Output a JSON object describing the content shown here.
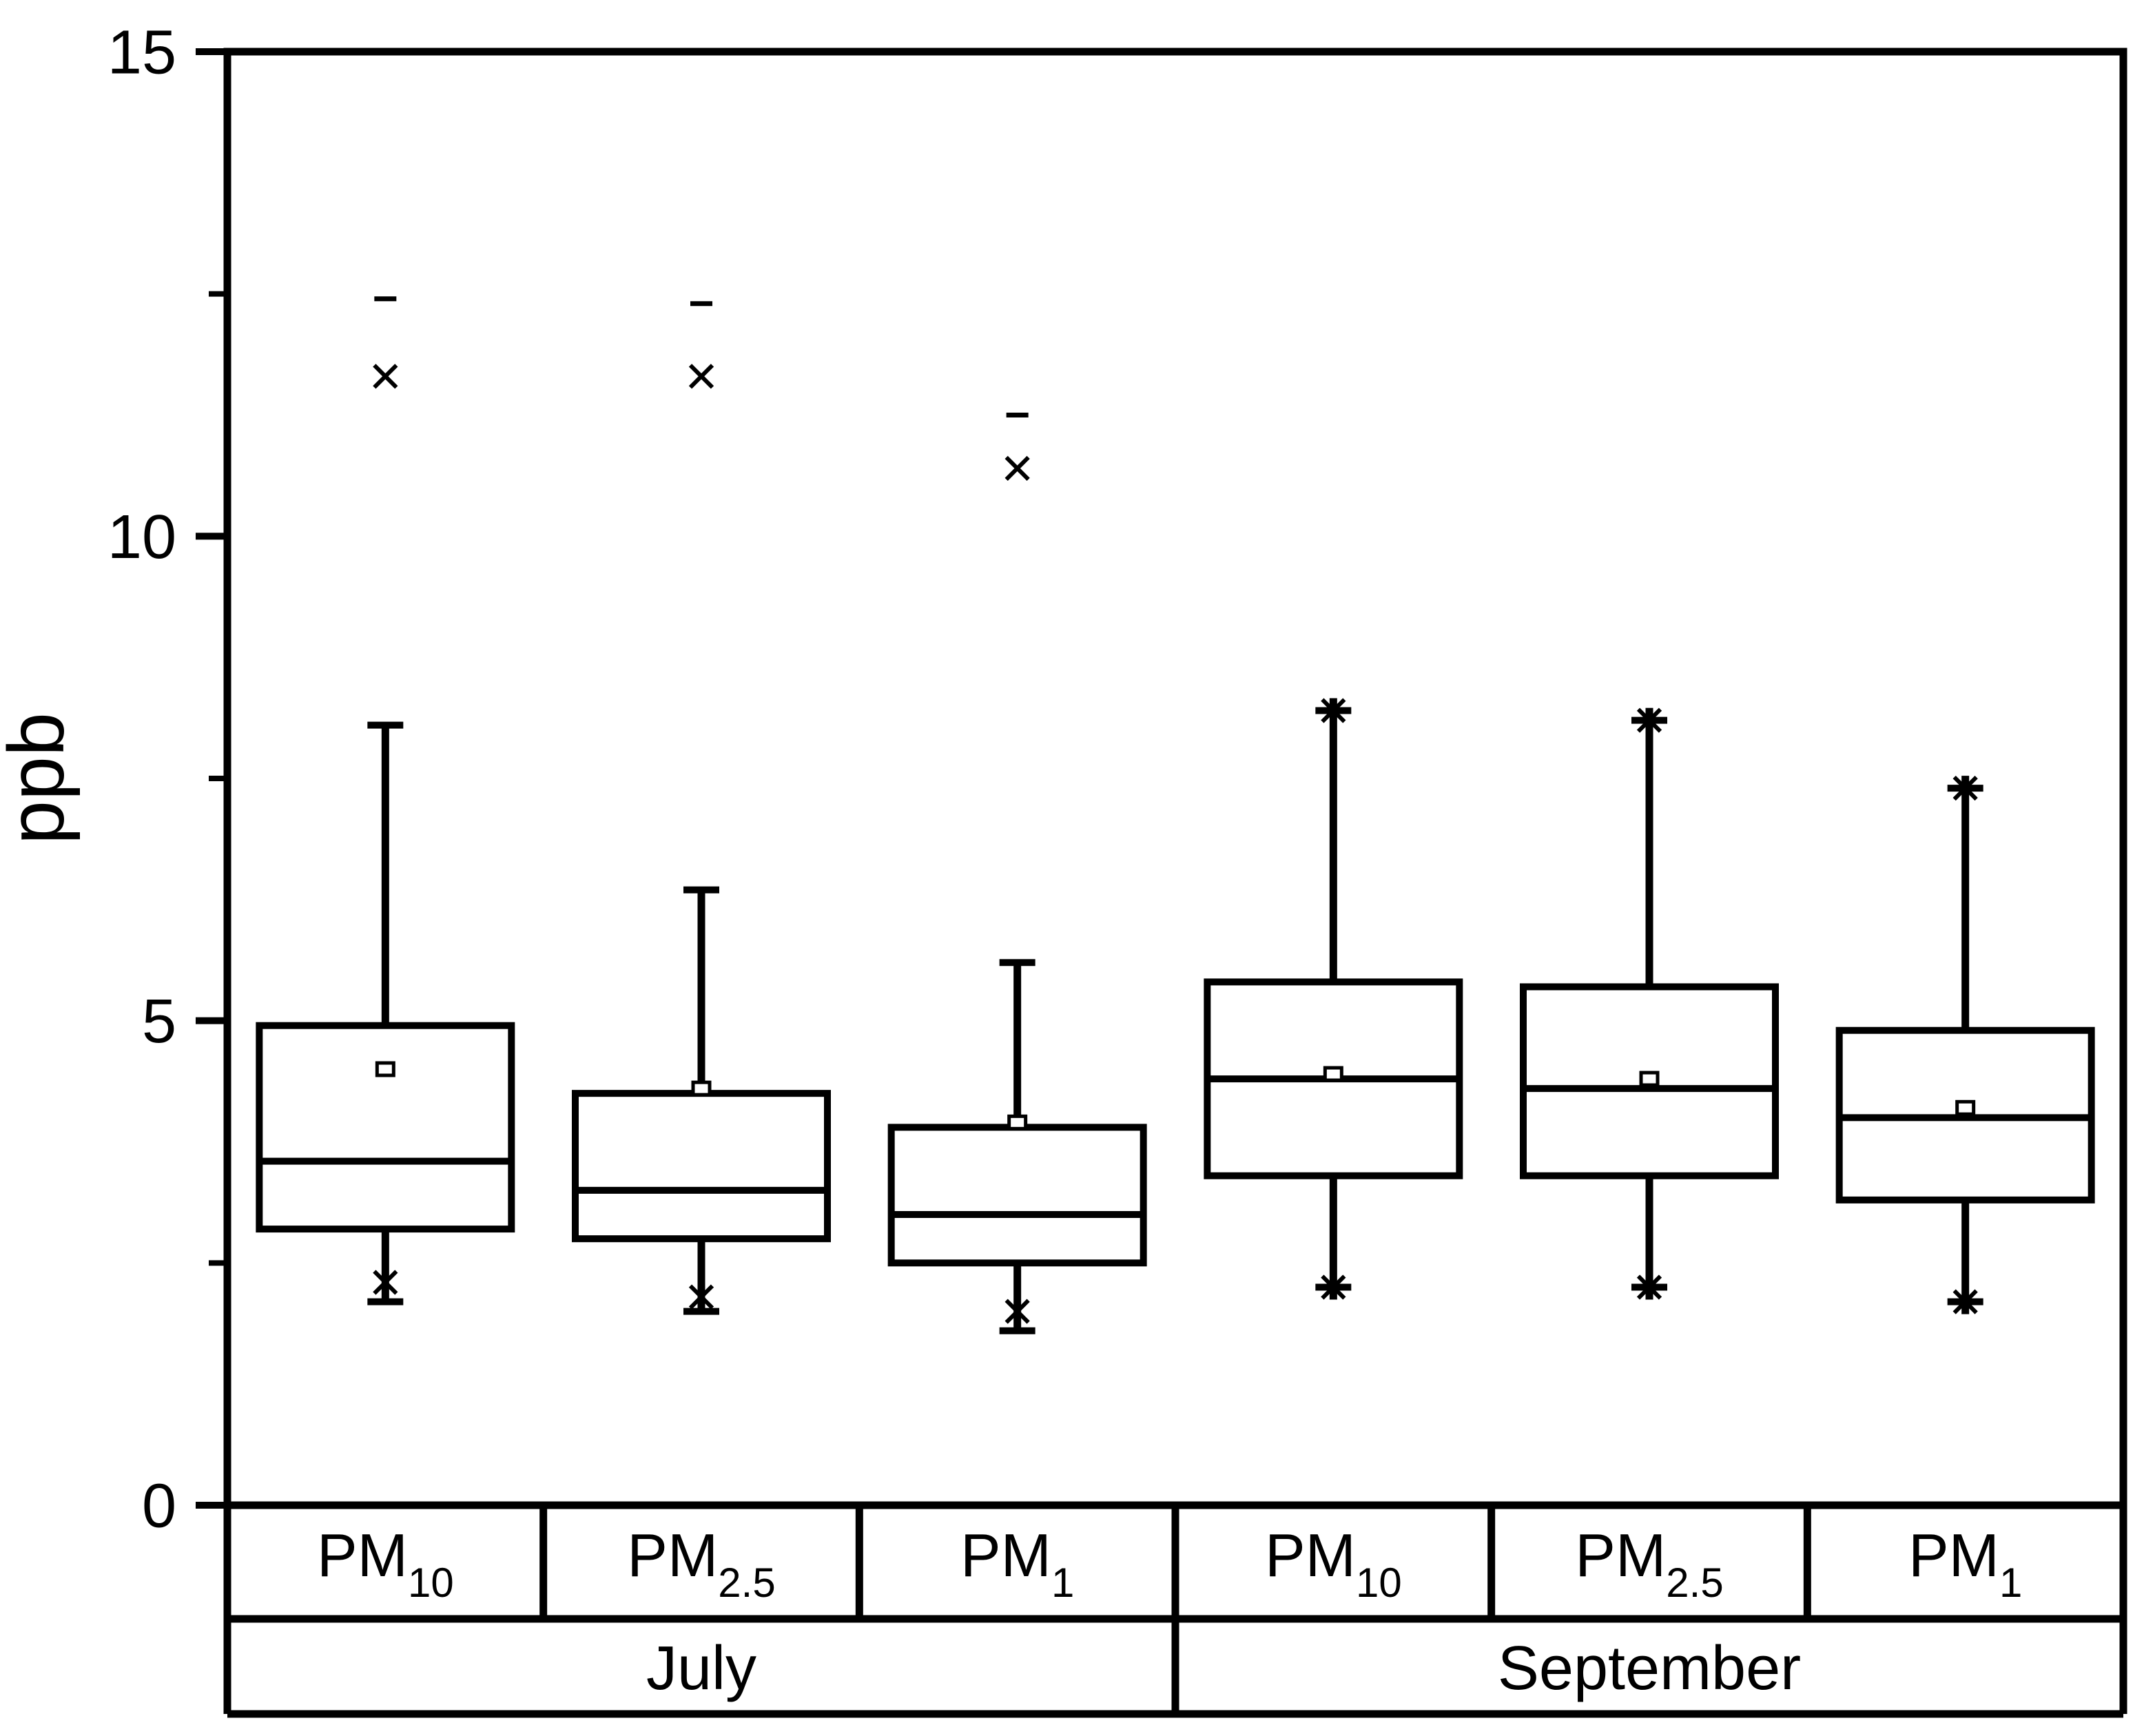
{
  "figure": {
    "background": "#ffffff",
    "line_color": "#000000"
  },
  "chart_data": {
    "type": "box",
    "title": "",
    "xlabel": "",
    "ylabel": "ppb",
    "ylim": [
      0,
      15
    ],
    "grid": false,
    "legend": "none",
    "yticks_major": [
      {
        "value": 0,
        "label": "0"
      },
      {
        "value": 5,
        "label": "5"
      },
      {
        "value": 10,
        "label": "10"
      },
      {
        "value": 15,
        "label": "15"
      }
    ],
    "yticks_minor": [
      2.5,
      7.5,
      12.5
    ],
    "groups": [
      {
        "label": "July",
        "span": 3
      },
      {
        "label": "September",
        "span": 3
      }
    ],
    "marker_key": {
      "square": "mean",
      "cross": "outlier-percentile-marker",
      "dash": "extreme-value-marker",
      "star_ends": "whisker-end-with-cross"
    },
    "boxes": [
      {
        "group": "July",
        "label_base": "PM",
        "label_sub": "10",
        "q1": 2.85,
        "median": 3.55,
        "q3": 4.95,
        "mean": 4.5,
        "whisker_low": 2.1,
        "whisker_high": 8.05,
        "cross_low": 2.3,
        "cross_high": 11.65,
        "dash_high": 12.45,
        "end_style": "cap"
      },
      {
        "group": "July",
        "label_base": "PM",
        "label_sub": "2.5",
        "q1": 2.75,
        "median": 3.25,
        "q3": 4.25,
        "mean": 4.3,
        "whisker_low": 2.0,
        "whisker_high": 6.35,
        "cross_low": 2.15,
        "cross_high": 11.65,
        "dash_high": 12.4,
        "end_style": "cap"
      },
      {
        "group": "July",
        "label_base": "PM",
        "label_sub": "1",
        "q1": 2.5,
        "median": 3.0,
        "q3": 3.9,
        "mean": 3.95,
        "whisker_low": 1.8,
        "whisker_high": 5.6,
        "cross_low": 2.0,
        "cross_high": 10.7,
        "dash_high": 11.25,
        "end_style": "cap"
      },
      {
        "group": "September",
        "label_base": "PM",
        "label_sub": "10",
        "q1": 3.4,
        "median": 4.4,
        "q3": 5.4,
        "mean": 4.45,
        "whisker_low": 2.25,
        "whisker_high": 8.2,
        "end_style": "star"
      },
      {
        "group": "September",
        "label_base": "PM",
        "label_sub": "2.5",
        "q1": 3.4,
        "median": 4.3,
        "q3": 5.35,
        "mean": 4.4,
        "whisker_low": 2.25,
        "whisker_high": 8.1,
        "end_style": "star"
      },
      {
        "group": "September",
        "label_base": "PM",
        "label_sub": "1",
        "q1": 3.15,
        "median": 4.0,
        "q3": 4.9,
        "mean": 4.1,
        "whisker_low": 2.1,
        "whisker_high": 7.4,
        "end_style": "star"
      }
    ]
  }
}
